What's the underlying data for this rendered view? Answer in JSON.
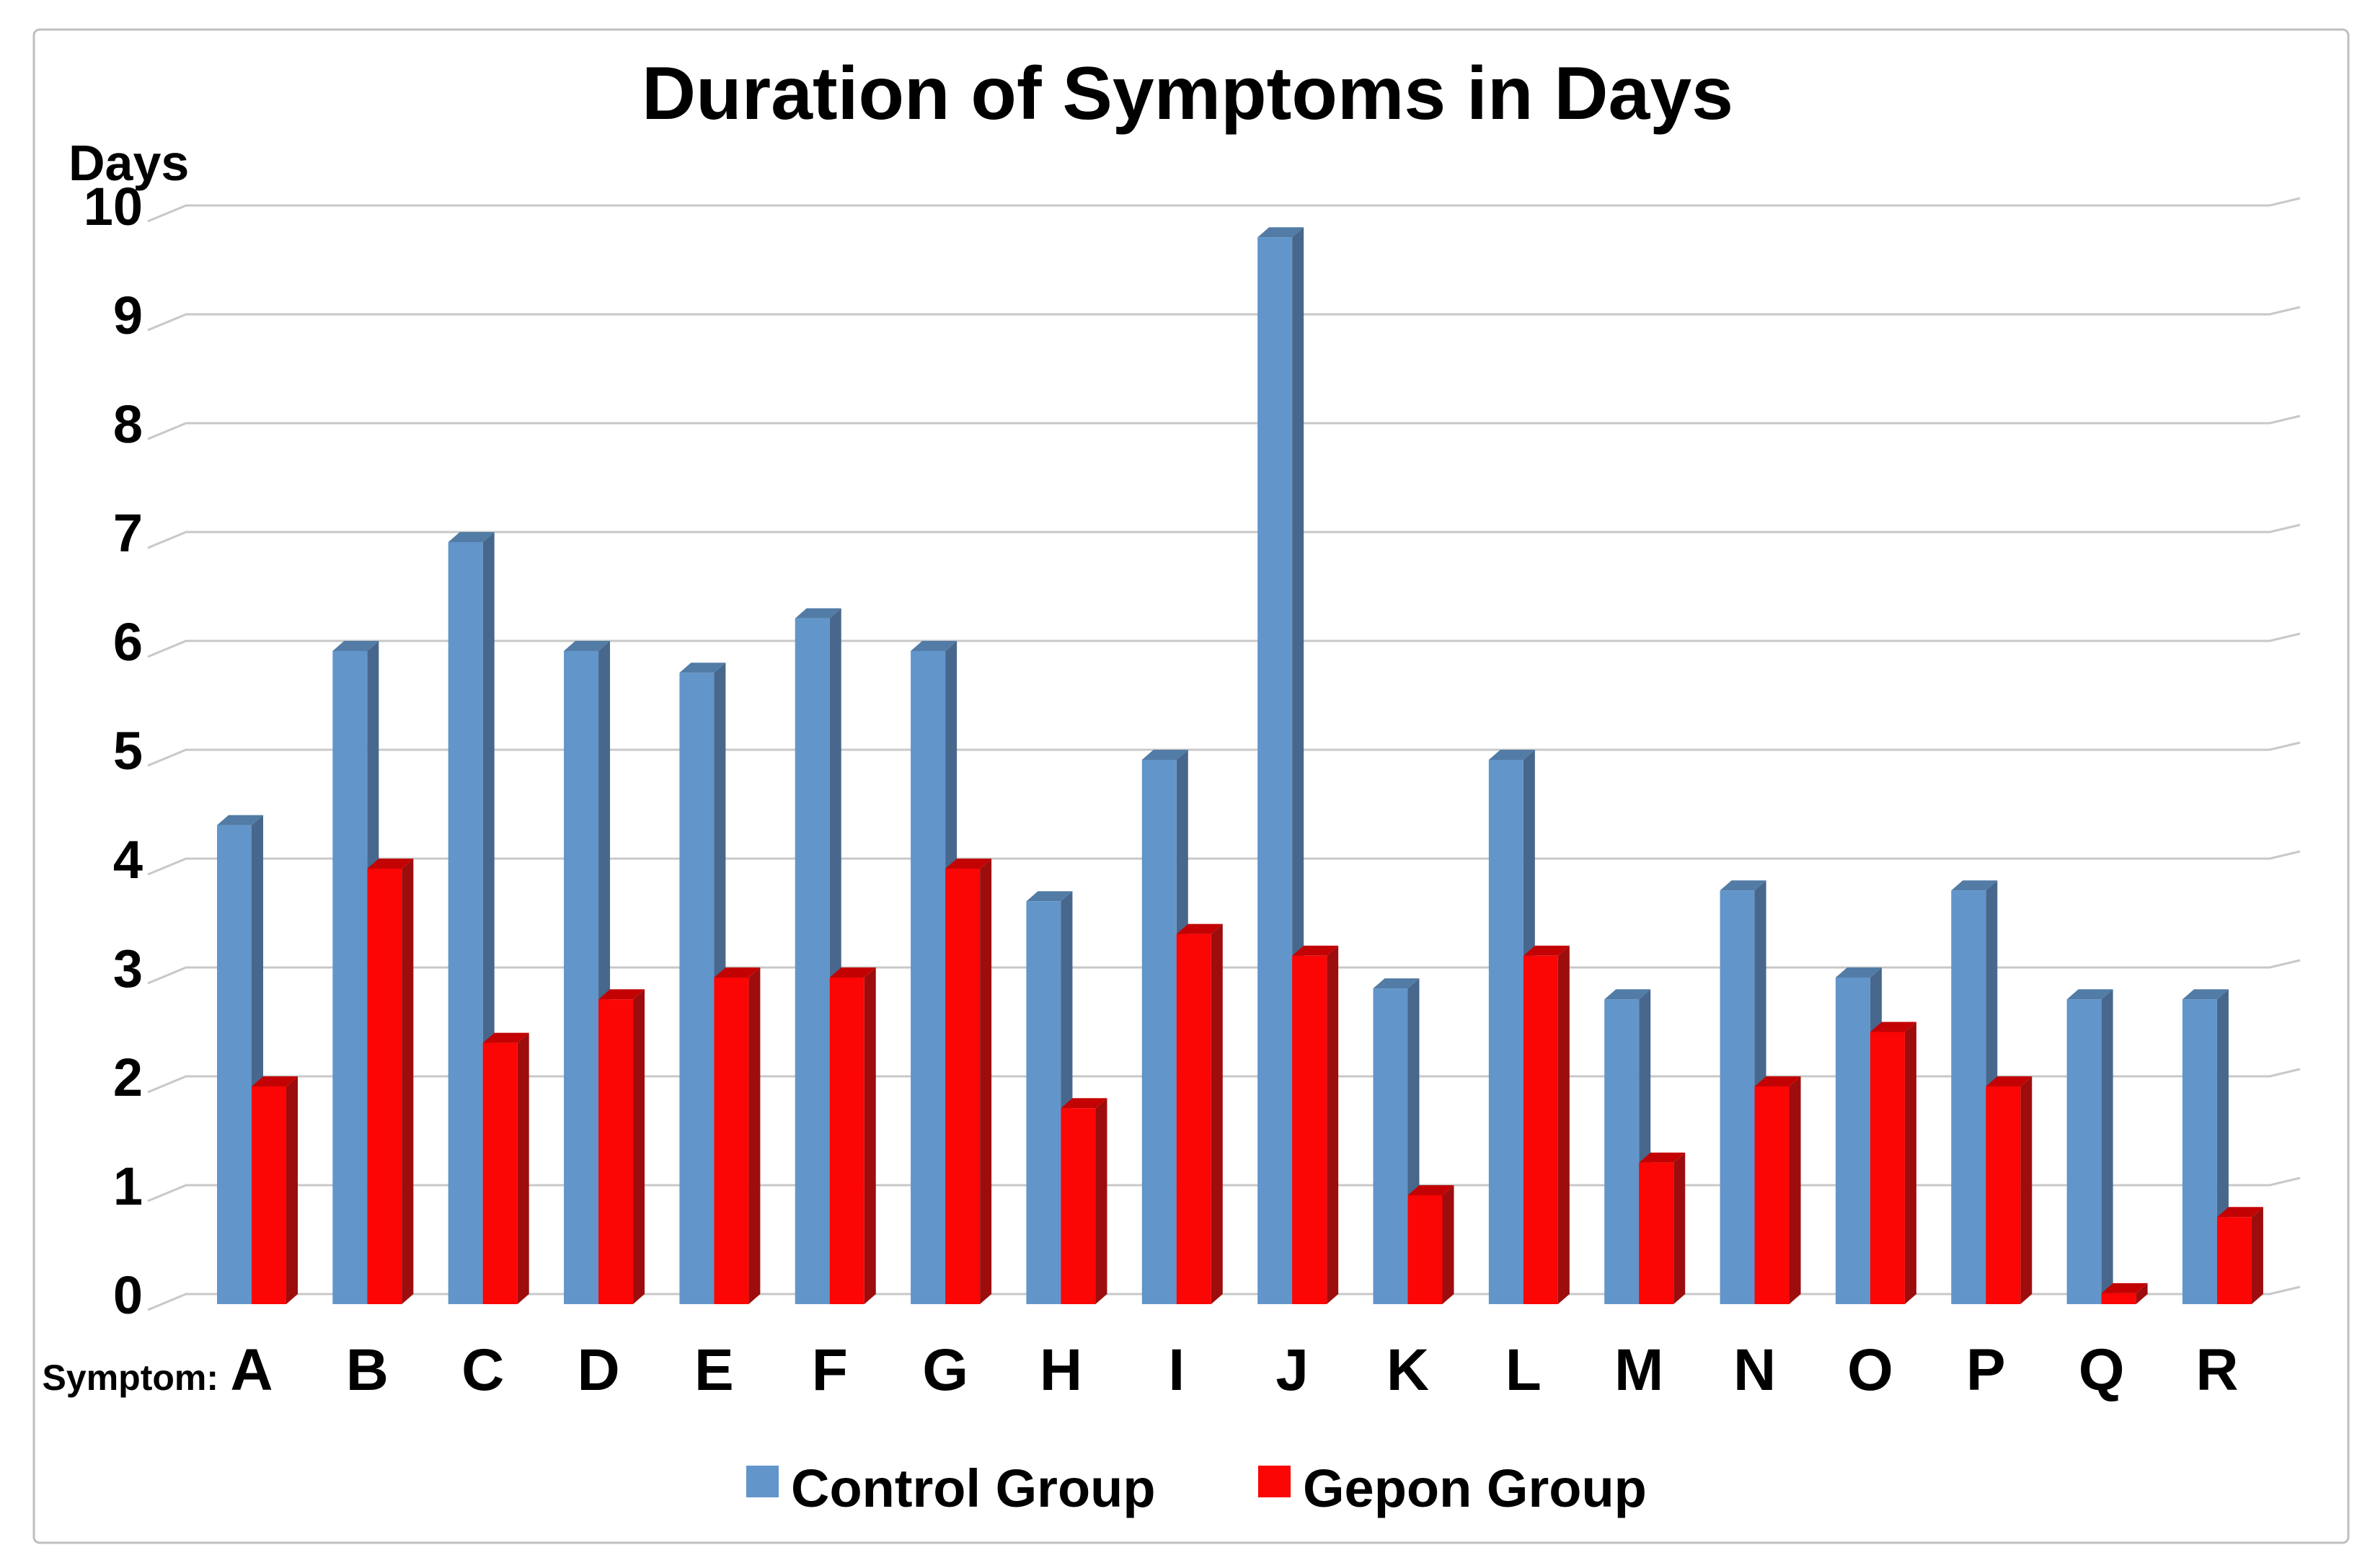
{
  "header": {
    "title": "Duration of Symptoms in Days"
  },
  "axes": {
    "y_label": "Days",
    "x_label": "Symptom:",
    "y_ticks": [
      "0",
      "1",
      "2",
      "3",
      "4",
      "5",
      "6",
      "7",
      "8",
      "9",
      "10"
    ]
  },
  "legend": {
    "items": [
      {
        "label": "Control Group",
        "swatch": "control-swatch"
      },
      {
        "label": "Gepon Group",
        "swatch": "gepon-swatch"
      }
    ]
  },
  "colors": {
    "control_front": "#6295CA",
    "control_side": "#48678C",
    "control_top": "#527CA6",
    "gepon_front": "#FB0505",
    "gepon_side": "#9E0D0D",
    "gepon_top": "#C30303",
    "gridline": "#C8C8C8",
    "frame": "#BFBFBF",
    "background": "#FFFFFF",
    "text": "#000000"
  },
  "chart_data": {
    "type": "bar",
    "style": "3d-clustered-column",
    "title": "Duration of Symptoms in Days",
    "ylabel": "Days",
    "xlabel": "Symptom:",
    "categories": [
      "A",
      "B",
      "C",
      "D",
      "E",
      "F",
      "G",
      "H",
      "I",
      "J",
      "K",
      "L",
      "M",
      "N",
      "O",
      "P",
      "Q",
      "R"
    ],
    "series": [
      {
        "name": "Control Group",
        "color": "#6295CA",
        "values": [
          4.4,
          6.0,
          7.0,
          6.0,
          5.8,
          6.3,
          6.0,
          3.7,
          5.0,
          9.8,
          2.9,
          5.0,
          2.8,
          3.8,
          3.0,
          3.8,
          2.8,
          2.8
        ]
      },
      {
        "name": "Gepon Group",
        "color": "#FB0505",
        "values": [
          2.0,
          4.0,
          2.4,
          2.8,
          3.0,
          3.0,
          4.0,
          1.8,
          3.4,
          3.2,
          1.0,
          3.2,
          1.3,
          2.0,
          2.5,
          2.0,
          0.1,
          0.8
        ]
      }
    ],
    "ylim": [
      0,
      10
    ],
    "ytick_step": 1,
    "grid": true,
    "legend_position": "bottom"
  }
}
